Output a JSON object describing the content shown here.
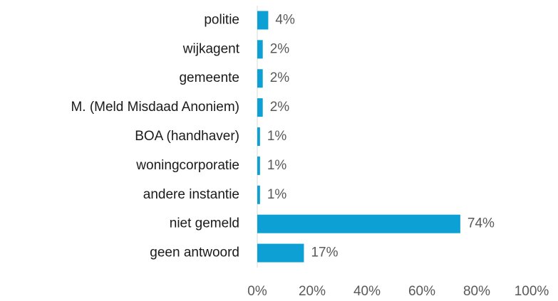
{
  "chart_data": {
    "type": "bar",
    "orientation": "horizontal",
    "categories": [
      "politie",
      "wijkagent",
      "gemeente",
      "M. (Meld Misdaad Anoniem)",
      "BOA (handhaver)",
      "woningcorporatie",
      "andere instantie",
      "niet gemeld",
      "geen antwoord"
    ],
    "values": [
      4,
      2,
      2,
      2,
      1,
      1,
      1,
      74,
      17
    ],
    "value_labels": [
      "4%",
      "2%",
      "2%",
      "2%",
      "1%",
      "1%",
      "1%",
      "74%",
      "17%"
    ],
    "color": "#0ca0d4",
    "xlim": [
      0,
      100
    ],
    "xticks": [
      {
        "value": 0,
        "label": "0%"
      },
      {
        "value": 20,
        "label": "20%"
      },
      {
        "value": 40,
        "label": "40%"
      },
      {
        "value": 60,
        "label": "60%"
      },
      {
        "value": 80,
        "label": "80%"
      },
      {
        "value": 100,
        "label": "100%"
      }
    ],
    "grid": false
  }
}
